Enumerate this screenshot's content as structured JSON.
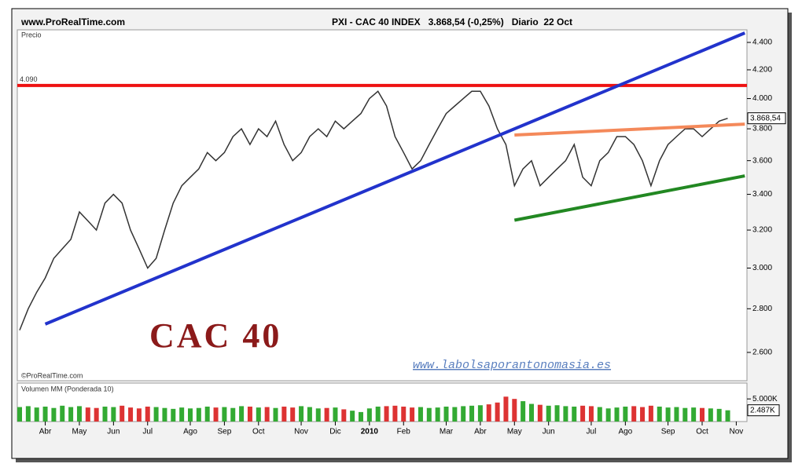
{
  "header": {
    "site": "www.ProRealTime.com",
    "title": "PXI - CAC 40 INDEX   3.868,54 (-0,25%)   Diario  22 Oct"
  },
  "overlay_title": "CAC 40",
  "watermark": "www.labolsaporantonomasia.es",
  "copyright": "©ProRealTime.com",
  "chart_data": [
    {
      "type": "line",
      "title": "Precio",
      "color": "#333333",
      "log": true,
      "categories": [
        null,
        null,
        null,
        "Abr",
        null,
        null,
        null,
        "May",
        null,
        null,
        null,
        "Jun",
        null,
        null,
        null,
        "Jul",
        null,
        null,
        null,
        null,
        "Ago",
        null,
        null,
        null,
        "Sep",
        null,
        null,
        null,
        "Oct",
        null,
        null,
        null,
        null,
        "Nov",
        null,
        null,
        null,
        "Dic",
        null,
        null,
        null,
        "2010",
        null,
        null,
        null,
        "Feb",
        null,
        null,
        null,
        null,
        "Mar",
        null,
        null,
        null,
        "Abr",
        null,
        null,
        null,
        "May",
        null,
        null,
        null,
        "Jun",
        null,
        null,
        null,
        null,
        "Jul",
        null,
        null,
        null,
        "Ago",
        null,
        null,
        null,
        null,
        "Sep",
        null,
        null,
        null,
        "Oct",
        null,
        null,
        null,
        "Nov",
        null
      ],
      "values": [
        2700,
        2800,
        2880,
        2950,
        3050,
        3100,
        3150,
        3300,
        3250,
        3200,
        3350,
        3400,
        3350,
        3200,
        3100,
        3000,
        3050,
        3200,
        3350,
        3450,
        3500,
        3550,
        3650,
        3600,
        3650,
        3750,
        3800,
        3700,
        3800,
        3750,
        3850,
        3700,
        3600,
        3650,
        3750,
        3800,
        3750,
        3850,
        3800,
        3850,
        3900,
        4000,
        4050,
        3950,
        3750,
        3650,
        3550,
        3600,
        3700,
        3800,
        3900,
        3950,
        4000,
        4050,
        4050,
        3950,
        3800,
        3700,
        3450,
        3550,
        3600,
        3450,
        3500,
        3550,
        3600,
        3700,
        3500,
        3450,
        3600,
        3650,
        3750,
        3750,
        3700,
        3600,
        3450,
        3600,
        3700,
        3750,
        3800,
        3800,
        3750,
        3800,
        3850,
        3868.54,
        null,
        null
      ],
      "value_labels": [
        null,
        null,
        null,
        null,
        null,
        null,
        null,
        null,
        null,
        null,
        null,
        null,
        null,
        null,
        null,
        null,
        null,
        null,
        null,
        null,
        null,
        null,
        null,
        null,
        null,
        null,
        null,
        null,
        null,
        null,
        null,
        null,
        null,
        null,
        null,
        null,
        null,
        null,
        null,
        null,
        null,
        null,
        null,
        null,
        null,
        null,
        null,
        null,
        null,
        null,
        null,
        null,
        null,
        null,
        null,
        null,
        null,
        null,
        null,
        null,
        null,
        null,
        null,
        null,
        null,
        null,
        null,
        null,
        null,
        null,
        null,
        null,
        null,
        null,
        null,
        null,
        null,
        null,
        null,
        null,
        null,
        null,
        null,
        "3.868,54",
        null,
        null
      ],
      "ylim": [
        2478,
        4495
      ],
      "yticks": [
        {
          "value": 2600,
          "label": "2.600"
        },
        {
          "value": 2800,
          "label": "2.800"
        },
        {
          "value": 3000,
          "label": "3.000"
        },
        {
          "value": 3200,
          "label": "3.200"
        },
        {
          "value": 3400,
          "label": "3.400"
        },
        {
          "value": 3600,
          "label": "3.600"
        },
        {
          "value": 3800,
          "label": "3.800"
        },
        {
          "value": 4000,
          "label": "4.000"
        },
        {
          "value": 4200,
          "label": "4.200"
        },
        {
          "value": 4400,
          "label": "4.400"
        }
      ],
      "level": {
        "value": 4090,
        "label": "4.090",
        "color": "#ee1111"
      },
      "trendlines": [
        {
          "color": "#2233cc",
          "from": [
            3,
            2728
          ],
          "to": [
            85,
            4471
          ]
        },
        {
          "color": "#f4895a",
          "from": [
            58,
            3760
          ],
          "to": [
            85,
            3830
          ]
        },
        {
          "color": "#228822",
          "from": [
            58,
            3254
          ],
          "to": [
            85,
            3508
          ]
        }
      ]
    },
    {
      "type": "bar",
      "title": "Volumen MM (Ponderada 10)",
      "up_color": "#33aa33",
      "down_color": "#dd3333",
      "values": [
        3200,
        3400,
        3100,
        3300,
        3000,
        3500,
        3200,
        3400,
        3100,
        3000,
        3300,
        3200,
        3500,
        3100,
        2900,
        3300,
        3200,
        3000,
        2800,
        3100,
        2900,
        3000,
        3300,
        3100,
        3200,
        3000,
        3400,
        3300,
        3100,
        3200,
        3000,
        3300,
        3100,
        3400,
        3200,
        2900,
        3000,
        3100,
        2700,
        2400,
        2100,
        2900,
        3300,
        3400,
        3500,
        3300,
        3100,
        3200,
        3000,
        3100,
        3300,
        3200,
        3400,
        3500,
        3600,
        3800,
        4200,
        5500,
        5000,
        4500,
        3900,
        3700,
        3500,
        3600,
        3400,
        3300,
        3500,
        3400,
        3200,
        2900,
        3100,
        3300,
        3400,
        3200,
        3500,
        3300,
        3100,
        3200,
        3000,
        3100,
        3000,
        2900,
        2800,
        2487,
        null,
        null
      ],
      "value_labels": [
        null,
        null,
        null,
        null,
        null,
        null,
        null,
        null,
        null,
        null,
        null,
        null,
        null,
        null,
        null,
        null,
        null,
        null,
        null,
        null,
        null,
        null,
        null,
        null,
        null,
        null,
        null,
        null,
        null,
        null,
        null,
        null,
        null,
        null,
        null,
        null,
        null,
        null,
        null,
        null,
        null,
        null,
        null,
        null,
        null,
        null,
        null,
        null,
        null,
        null,
        null,
        null,
        null,
        null,
        null,
        null,
        null,
        null,
        null,
        null,
        null,
        null,
        null,
        null,
        null,
        null,
        null,
        null,
        null,
        null,
        null,
        null,
        null,
        null,
        null,
        null,
        null,
        null,
        null,
        null,
        null,
        null,
        null,
        "2.487K",
        null,
        null
      ],
      "ylim": [
        0,
        8500
      ],
      "yticks": [
        {
          "value": 5000,
          "label": "5.000K"
        }
      ]
    }
  ]
}
